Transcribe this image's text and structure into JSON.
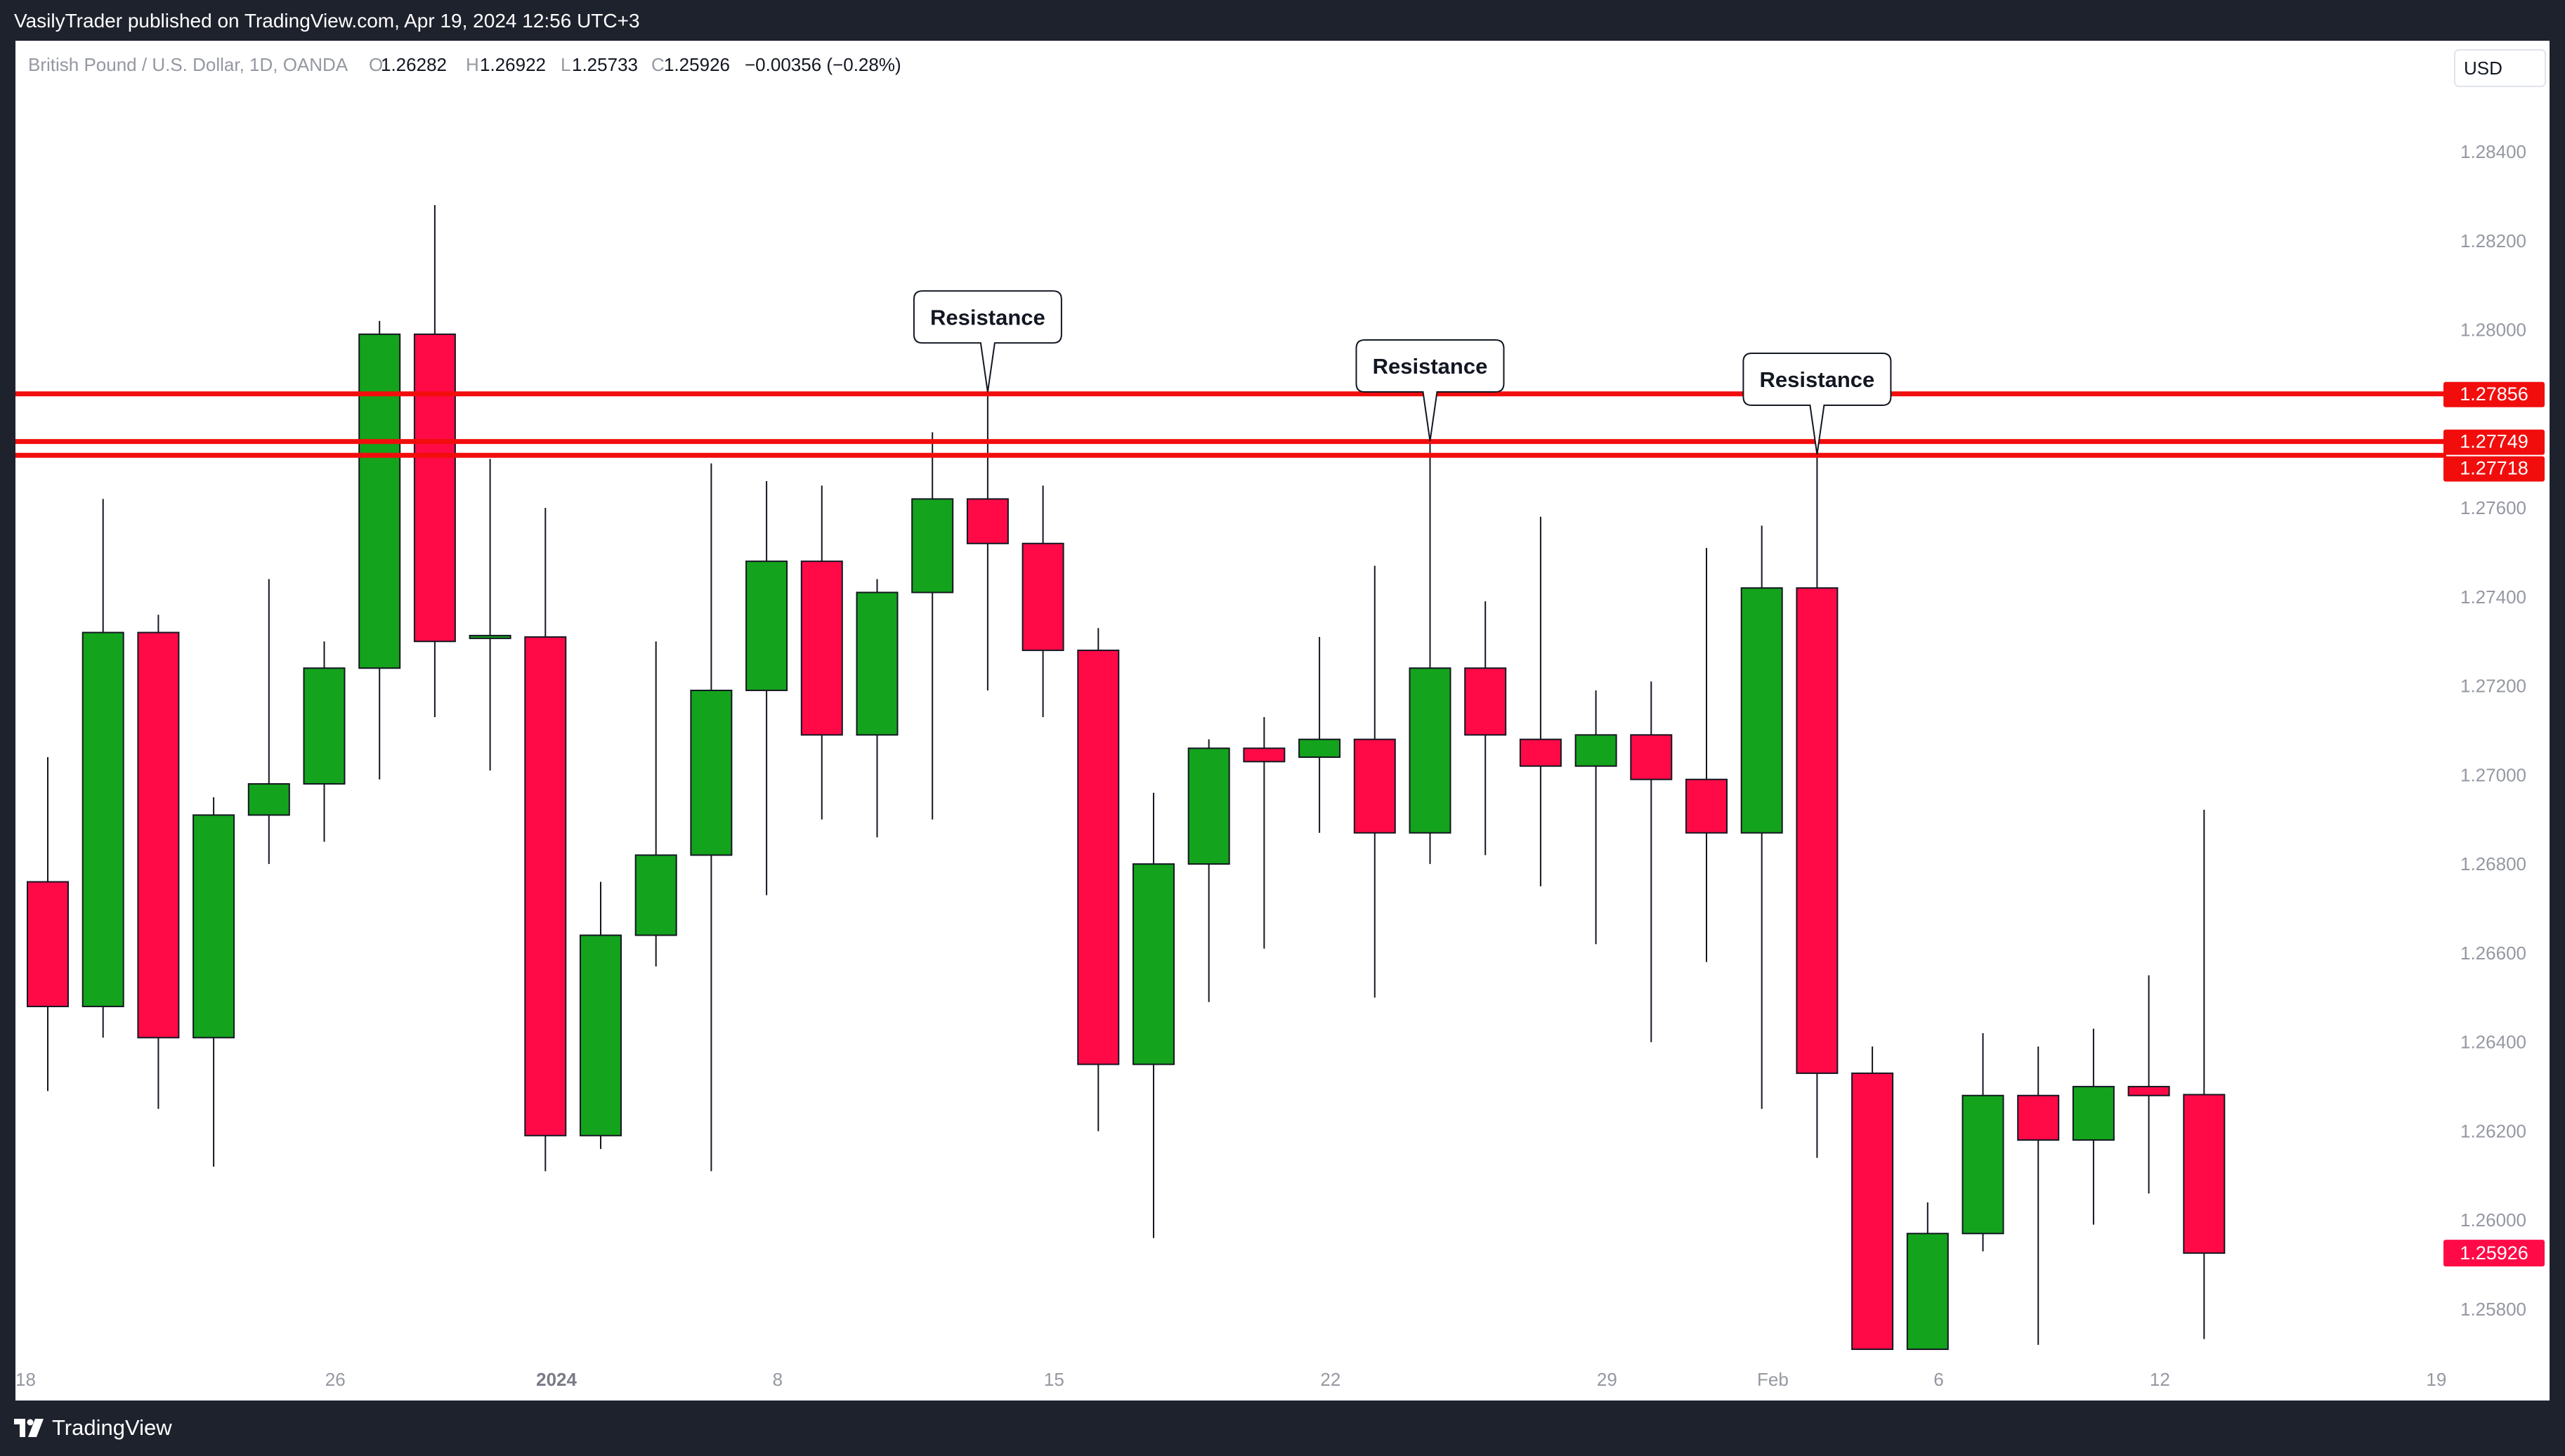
{
  "header": {
    "published_line": "VasilyTrader published on TradingView.com, Apr 19, 2024 12:56 UTC+3"
  },
  "legend": {
    "symbol": "British Pound / U.S. Dollar, 1D, OANDA",
    "o_label": "O",
    "o_value": "1.26282",
    "h_label": "H",
    "h_value": "1.26922",
    "l_label": "L",
    "l_value": "1.25733",
    "c_label": "C",
    "c_value": "1.25926",
    "change": "−0.00356 (−0.28%)"
  },
  "currency": "USD",
  "footer": {
    "brand": "TradingView"
  },
  "colors": {
    "up": "#14a31c",
    "down": "#ff0a47",
    "resistance": "#f20d0d",
    "last_price": "#ff0a47"
  },
  "chart_data": {
    "type": "candlestick",
    "symbol": "GBPUSD",
    "timeframe": "1D",
    "y_axis": {
      "range": [
        1.2571,
        1.2853
      ],
      "ticks": [
        "1.28400",
        "1.28200",
        "1.28000",
        "1.27600",
        "1.27400",
        "1.27200",
        "1.27000",
        "1.26800",
        "1.26600",
        "1.26400",
        "1.26200",
        "1.26000",
        "1.25800"
      ]
    },
    "x_axis": {
      "ticks": [
        {
          "label": "18",
          "slot": -0.4,
          "bold": false
        },
        {
          "label": "26",
          "slot": 5.2,
          "bold": false
        },
        {
          "label": "2024",
          "slot": 9.2,
          "bold": true
        },
        {
          "label": "8",
          "slot": 13.2,
          "bold": false
        },
        {
          "label": "15",
          "slot": 18.2,
          "bold": false
        },
        {
          "label": "22",
          "slot": 23.2,
          "bold": false
        },
        {
          "label": "29",
          "slot": 28.2,
          "bold": false
        },
        {
          "label": "Feb",
          "slot": 31.2,
          "bold": false
        },
        {
          "label": "6",
          "slot": 34.2,
          "bold": false
        },
        {
          "label": "12",
          "slot": 38.2,
          "bold": false
        },
        {
          "label": "19",
          "slot": 43.2,
          "bold": false
        }
      ]
    },
    "candles": [
      {
        "o": 1.2676,
        "h": 1.2704,
        "l": 1.2629,
        "c": 1.2648
      },
      {
        "o": 1.2648,
        "h": 1.2762,
        "l": 1.2641,
        "c": 1.2732
      },
      {
        "o": 1.2732,
        "h": 1.2736,
        "l": 1.2625,
        "c": 1.2641
      },
      {
        "o": 1.2641,
        "h": 1.2695,
        "l": 1.2612,
        "c": 1.2691
      },
      {
        "o": 1.2691,
        "h": 1.2744,
        "l": 1.268,
        "c": 1.2698
      },
      {
        "o": 1.2698,
        "h": 1.273,
        "l": 1.2685,
        "c": 1.2724
      },
      {
        "o": 1.2724,
        "h": 1.2802,
        "l": 1.2699,
        "c": 1.2799
      },
      {
        "o": 1.2799,
        "h": 1.2828,
        "l": 1.2713,
        "c": 1.273
      },
      {
        "o": 1.2731,
        "h": 1.2771,
        "l": 1.2701,
        "c": 1.2731
      },
      {
        "o": 1.2731,
        "h": 1.276,
        "l": 1.2611,
        "c": 1.2619
      },
      {
        "o": 1.2619,
        "h": 1.2676,
        "l": 1.2616,
        "c": 1.2664
      },
      {
        "o": 1.2664,
        "h": 1.273,
        "l": 1.2657,
        "c": 1.2682
      },
      {
        "o": 1.2682,
        "h": 1.277,
        "l": 1.2611,
        "c": 1.2719
      },
      {
        "o": 1.2719,
        "h": 1.2766,
        "l": 1.2673,
        "c": 1.2748
      },
      {
        "o": 1.2748,
        "h": 1.2765,
        "l": 1.269,
        "c": 1.2709
      },
      {
        "o": 1.2709,
        "h": 1.2744,
        "l": 1.2686,
        "c": 1.2741
      },
      {
        "o": 1.2741,
        "h": 1.2777,
        "l": 1.269,
        "c": 1.2762
      },
      {
        "o": 1.2762,
        "h": 1.2786,
        "l": 1.2719,
        "c": 1.2752
      },
      {
        "o": 1.2752,
        "h": 1.2765,
        "l": 1.2713,
        "c": 1.2728
      },
      {
        "o": 1.2728,
        "h": 1.2733,
        "l": 1.262,
        "c": 1.2635
      },
      {
        "o": 1.2635,
        "h": 1.2696,
        "l": 1.2596,
        "c": 1.268
      },
      {
        "o": 1.268,
        "h": 1.2708,
        "l": 1.2649,
        "c": 1.2706
      },
      {
        "o": 1.2706,
        "h": 1.2713,
        "l": 1.2661,
        "c": 1.2703
      },
      {
        "o": 1.2704,
        "h": 1.2731,
        "l": 1.2687,
        "c": 1.2708
      },
      {
        "o": 1.2708,
        "h": 1.2747,
        "l": 1.265,
        "c": 1.2687
      },
      {
        "o": 1.2687,
        "h": 1.2775,
        "l": 1.268,
        "c": 1.2724
      },
      {
        "o": 1.2724,
        "h": 1.2739,
        "l": 1.2682,
        "c": 1.2709
      },
      {
        "o": 1.2708,
        "h": 1.2758,
        "l": 1.2675,
        "c": 1.2702
      },
      {
        "o": 1.2702,
        "h": 1.2719,
        "l": 1.2662,
        "c": 1.2709
      },
      {
        "o": 1.2709,
        "h": 1.2721,
        "l": 1.264,
        "c": 1.2699
      },
      {
        "o": 1.2699,
        "h": 1.2751,
        "l": 1.2658,
        "c": 1.2687
      },
      {
        "o": 1.2687,
        "h": 1.2756,
        "l": 1.2625,
        "c": 1.2742
      },
      {
        "o": 1.2742,
        "h": 1.2772,
        "l": 1.2614,
        "c": 1.2633
      },
      {
        "o": 1.2633,
        "h": 1.2639,
        "l": 1.2571,
        "c": 1.2571
      },
      {
        "o": 1.2571,
        "h": 1.2604,
        "l": 1.2571,
        "c": 1.2597
      },
      {
        "o": 1.2597,
        "h": 1.2642,
        "l": 1.2593,
        "c": 1.2628
      },
      {
        "o": 1.2628,
        "h": 1.2639,
        "l": 1.2572,
        "c": 1.2618
      },
      {
        "o": 1.2618,
        "h": 1.2643,
        "l": 1.2599,
        "c": 1.263
      },
      {
        "o": 1.263,
        "h": 1.2655,
        "l": 1.2606,
        "c": 1.2628
      },
      {
        "o": 1.26282,
        "h": 1.26922,
        "l": 1.25733,
        "c": 1.25926
      }
    ],
    "resistance_lines": [
      {
        "price": 1.27856,
        "label": "1.27856"
      },
      {
        "price": 1.27749,
        "label": "1.27749"
      },
      {
        "price": 1.27718,
        "label": "1.27718"
      }
    ],
    "annotations": [
      {
        "text": "Resistance",
        "candle": 17,
        "price": 1.2786
      },
      {
        "text": "Resistance",
        "candle": 25,
        "price": 1.2775
      },
      {
        "text": "Resistance",
        "candle": 32,
        "price": 1.2772
      }
    ],
    "last_price": {
      "price": 1.25926,
      "label": "1.25926"
    }
  }
}
